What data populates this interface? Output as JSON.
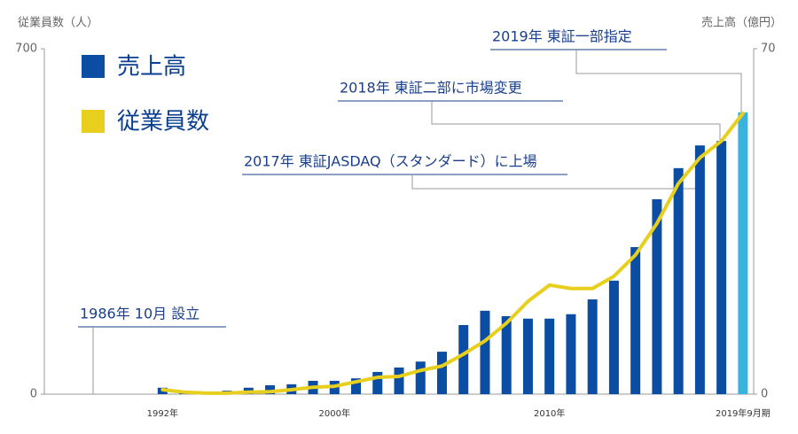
{
  "chart_data": {
    "type": "bar_line",
    "y_label": "従業員数（人）",
    "y2_label": "売上高（億円）",
    "categories": [
      null,
      null,
      null,
      null,
      null,
      "1992年",
      null,
      null,
      null,
      null,
      null,
      null,
      null,
      "2000年",
      null,
      null,
      null,
      null,
      null,
      null,
      null,
      null,
      null,
      "2010年",
      null,
      null,
      null,
      null,
      null,
      null,
      null,
      null,
      "2019年9月期"
    ],
    "series": [
      {
        "name": "売上高",
        "type": "bar",
        "axis": "y2",
        "color": "#0a4da2",
        "last_color": "#3ab3dc",
        "values": [
          null,
          null,
          null,
          null,
          null,
          1.3,
          0.7,
          0.4,
          0.7,
          1.3,
          1.8,
          2.0,
          2.7,
          2.7,
          3.2,
          4.5,
          5.4,
          6.6,
          8.6,
          14.0,
          16.9,
          15.8,
          15.3,
          15.3,
          16.2,
          19.2,
          23.0,
          29.8,
          39.5,
          45.8,
          50.4,
          51.3,
          57.1
        ]
      },
      {
        "name": "従業員数",
        "type": "line",
        "color": "#e8cf1e",
        "values": [
          null,
          null,
          null,
          null,
          null,
          9,
          4,
          2,
          2,
          4,
          5,
          9,
          14,
          16,
          25,
          34,
          36,
          48,
          57,
          81,
          108,
          144,
          188,
          221,
          214,
          214,
          239,
          282,
          346,
          427,
          479,
          513,
          569
        ]
      }
    ],
    "ylim": [
      0,
      700
    ],
    "yticks": [
      0,
      700
    ],
    "y2lim": [
      0,
      70
    ],
    "y2ticks": [
      0,
      70
    ],
    "annotations": [
      {
        "text": "1986年 10月 設立"
      },
      {
        "text": "2017年 東証JASDAQ（スタンダード）に上場"
      },
      {
        "text": "2018年 東証二部に市場変更"
      },
      {
        "text": "2019年 東証一部指定"
      }
    ]
  }
}
